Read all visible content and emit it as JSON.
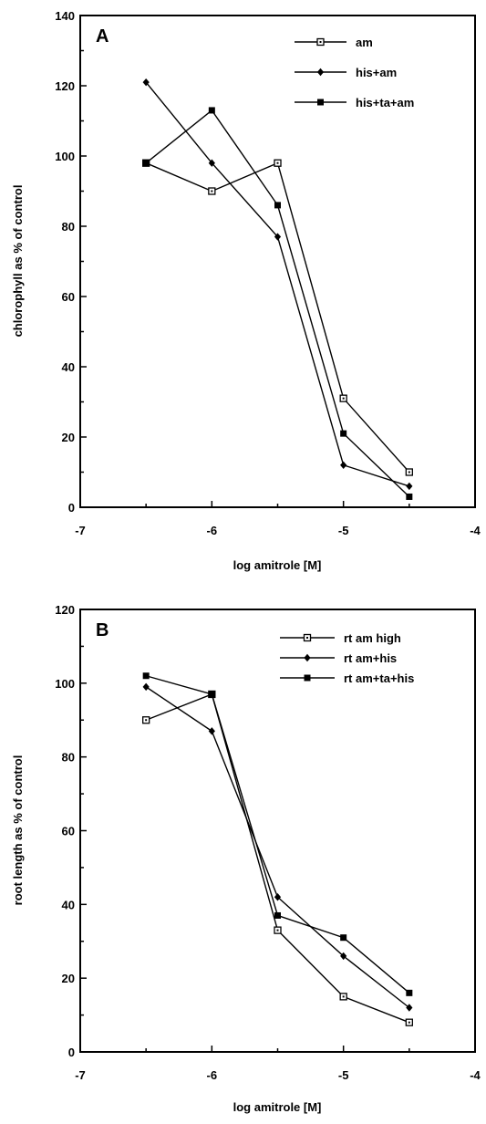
{
  "chart_data": [
    {
      "type": "line",
      "panel_label": "A",
      "xlabel": "log amitrole [M]",
      "ylabel": "chlorophyll as % of control",
      "xlim": [
        -7,
        -4
      ],
      "ylim": [
        0,
        140
      ],
      "x_ticks": [
        -7,
        -6,
        -5,
        -4
      ],
      "y_ticks": [
        0,
        20,
        40,
        60,
        80,
        100,
        120,
        140
      ],
      "grid": false,
      "legend_position": "top-right",
      "series": [
        {
          "name": "am",
          "marker": "open-square",
          "x": [
            -6.5,
            -6,
            -5.5,
            -5,
            -4.5
          ],
          "y": [
            98,
            90,
            98,
            31,
            10
          ]
        },
        {
          "name": "his+am",
          "marker": "diamond",
          "x": [
            -6.5,
            -6,
            -5.5,
            -5,
            -4.5
          ],
          "y": [
            121,
            98,
            77,
            12,
            6
          ]
        },
        {
          "name": "his+ta+am",
          "marker": "filled-square",
          "x": [
            -6.5,
            -6,
            -5.5,
            -5,
            -4.5
          ],
          "y": [
            98,
            113,
            86,
            21,
            3
          ]
        }
      ]
    },
    {
      "type": "line",
      "panel_label": "B",
      "xlabel": "log amitrole [M]",
      "ylabel": "root length as % of control",
      "xlim": [
        -7,
        -4
      ],
      "ylim": [
        0,
        120
      ],
      "x_ticks": [
        -7,
        -6,
        -5,
        -4
      ],
      "y_ticks": [
        0,
        20,
        40,
        60,
        80,
        100,
        120
      ],
      "grid": false,
      "legend_position": "top-right",
      "series": [
        {
          "name": "rt am high",
          "marker": "open-square",
          "x": [
            -6.5,
            -6,
            -5.5,
            -5,
            -4.5
          ],
          "y": [
            90,
            97,
            33,
            15,
            8
          ]
        },
        {
          "name": "rt am+his",
          "marker": "diamond",
          "x": [
            -6.5,
            -6,
            -5.5,
            -5,
            -4.5
          ],
          "y": [
            99,
            87,
            42,
            26,
            12
          ]
        },
        {
          "name": "rt am+ta+his",
          "marker": "filled-square",
          "x": [
            -6.5,
            -6,
            -5.5,
            -5,
            -4.5
          ],
          "y": [
            102,
            97,
            37,
            31,
            16
          ]
        }
      ]
    }
  ]
}
